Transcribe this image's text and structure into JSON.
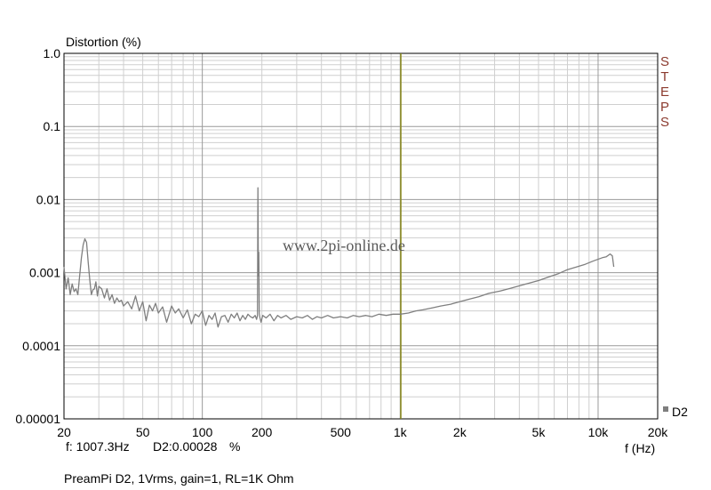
{
  "chart_data": {
    "type": "line",
    "title": "",
    "ylabel": "Distortion (%)",
    "xlabel": "f (Hz)",
    "xscale": "log",
    "yscale": "log",
    "xlim": [
      20,
      20000
    ],
    "ylim": [
      1e-05,
      1.0
    ],
    "x_ticks": [
      {
        "v": 20,
        "label": "20"
      },
      {
        "v": 50,
        "label": "50"
      },
      {
        "v": 100,
        "label": "100"
      },
      {
        "v": 200,
        "label": "200"
      },
      {
        "v": 500,
        "label": "500"
      },
      {
        "v": 1000,
        "label": "1k"
      },
      {
        "v": 2000,
        "label": "2k"
      },
      {
        "v": 5000,
        "label": "5k"
      },
      {
        "v": 10000,
        "label": "10k"
      },
      {
        "v": 20000,
        "label": "20k"
      }
    ],
    "y_ticks": [
      {
        "v": 1.0,
        "label": "1.0"
      },
      {
        "v": 0.1,
        "label": "0.1"
      },
      {
        "v": 0.01,
        "label": "0.01"
      },
      {
        "v": 0.001,
        "label": "0.001"
      },
      {
        "v": 0.0001,
        "label": "0.0001"
      },
      {
        "v": 1e-05,
        "label": "0.00001"
      }
    ],
    "grid": true,
    "cursor_x": 1007.3,
    "side_label": "STEPS",
    "watermark": "www.2pi-online.de",
    "legend": {
      "label": "D2",
      "position": "bottom-right"
    },
    "colors": {
      "series": "#7f7f7f",
      "cursor": "#8a8a1a",
      "grid": "#cfcfcf",
      "decade_grid": "#9a9a9a"
    },
    "series": [
      {
        "name": "D2",
        "x": [
          20,
          20.5,
          21,
          21.5,
          22,
          22.5,
          23,
          23.5,
          24,
          24.5,
          25,
          25.5,
          26,
          26.5,
          27,
          27.5,
          28,
          28.5,
          29,
          29.5,
          30,
          31,
          32,
          33,
          34,
          35,
          36,
          37,
          38,
          39,
          40,
          42,
          44,
          46,
          48,
          50,
          52,
          54,
          56,
          58,
          60,
          63,
          66,
          70,
          73,
          76,
          80,
          84,
          88,
          92,
          96,
          100,
          104,
          108,
          112,
          116,
          120,
          125,
          130,
          135,
          140,
          145,
          150,
          155,
          160,
          165,
          170,
          175,
          180,
          185,
          188,
          190,
          191,
          192,
          193,
          194,
          195,
          198,
          202,
          210,
          220,
          230,
          240,
          250,
          265,
          280,
          300,
          320,
          340,
          360,
          380,
          400,
          430,
          460,
          500,
          540,
          580,
          620,
          670,
          720,
          780,
          850,
          920,
          1000,
          1100,
          1200,
          1300,
          1450,
          1600,
          1800,
          2000,
          2200,
          2500,
          2800,
          3200,
          3600,
          4000,
          4500,
          5000,
          5600,
          6300,
          7000,
          7800,
          8600,
          9500,
          10500,
          11000,
          11500,
          11800,
          12000
        ],
        "y": [
          0.0012,
          0.0006,
          0.00085,
          0.0005,
          0.0007,
          0.00055,
          0.0006,
          0.0005,
          0.0009,
          0.0016,
          0.0024,
          0.0029,
          0.0026,
          0.0014,
          0.0008,
          0.0005,
          0.00058,
          0.0006,
          0.00075,
          0.00048,
          0.00065,
          0.0006,
          0.00045,
          0.0006,
          0.00042,
          0.0005,
          0.00038,
          0.00045,
          0.0004,
          0.00042,
          0.00035,
          0.0004,
          0.00032,
          0.00048,
          0.0003,
          0.0004,
          0.00022,
          0.00036,
          0.0003,
          0.00038,
          0.00028,
          0.00034,
          0.00021,
          0.00035,
          0.00028,
          0.00032,
          0.00024,
          0.00031,
          0.0002,
          0.00027,
          0.00025,
          0.0003,
          0.00019,
          0.00026,
          0.00023,
          0.00028,
          0.00018,
          0.00025,
          0.00026,
          0.00021,
          0.00027,
          0.00024,
          0.00028,
          0.00022,
          0.00026,
          0.00023,
          0.00027,
          0.00025,
          0.00024,
          0.00026,
          0.00023,
          0.00026,
          0.0145,
          0.0009,
          0.0019,
          0.00028,
          0.00025,
          0.00021,
          0.00026,
          0.00024,
          0.00027,
          0.00022,
          0.00026,
          0.00024,
          0.00026,
          0.00023,
          0.00025,
          0.00024,
          0.00026,
          0.00023,
          0.00025,
          0.00024,
          0.00026,
          0.00024,
          0.00025,
          0.00024,
          0.00026,
          0.00025,
          0.00026,
          0.00025,
          0.00027,
          0.00026,
          0.00027,
          0.00027,
          0.00028,
          0.0003,
          0.00031,
          0.00033,
          0.00035,
          0.00037,
          0.0004,
          0.00043,
          0.00047,
          0.00052,
          0.00056,
          0.00061,
          0.00066,
          0.00072,
          0.00078,
          0.00087,
          0.00097,
          0.0011,
          0.0012,
          0.0013,
          0.00145,
          0.0016,
          0.00165,
          0.0018,
          0.0017,
          0.0012
        ]
      }
    ]
  },
  "readout": {
    "f_label": "f: 1007.3Hz",
    "d2_label": "D2:0.00028",
    "unit": "%"
  },
  "caption": "PreamPi D2, 1Vrms, gain=1, RL=1K Ohm"
}
